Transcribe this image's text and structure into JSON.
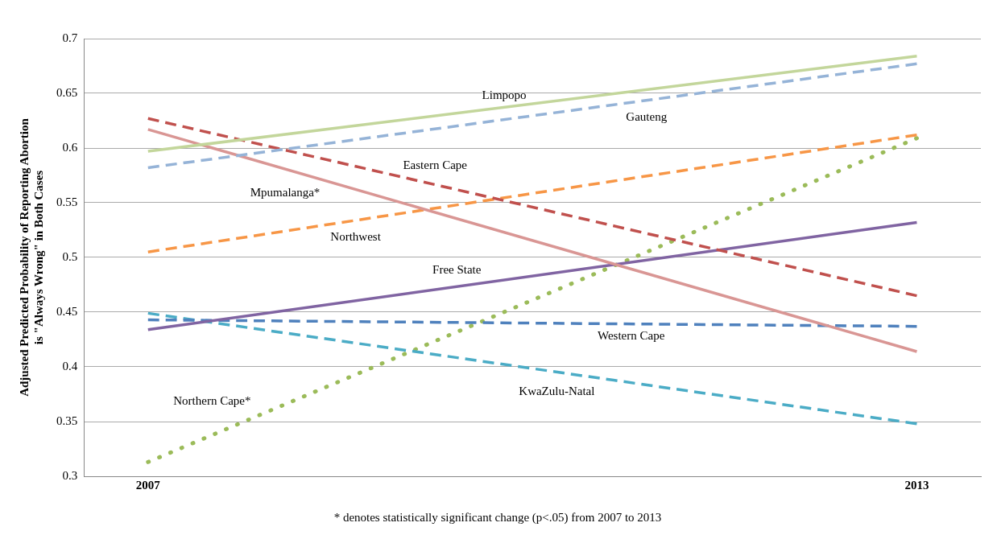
{
  "chart_data": {
    "type": "line",
    "ylabel": "Adjusted Predicted Probability of Reporting Abortion is \"Always Wrong\" in Both Cases",
    "x": [
      2007,
      2013
    ],
    "xlim": [
      2006.5,
      2013.5
    ],
    "xticks": [
      2007,
      2013
    ],
    "ylim": [
      0.3,
      0.7
    ],
    "yticks": [
      0.3,
      0.35,
      0.4,
      0.45,
      0.5,
      0.55,
      0.6,
      0.65,
      0.7
    ],
    "grid": "y",
    "legend": false,
    "marker": "none",
    "series": [
      {
        "name": "Limpopo",
        "color": "#c3d69b",
        "values": [
          0.597,
          0.684
        ],
        "line_style": "solid"
      },
      {
        "name": "Gauteng",
        "color": "#95b3d7",
        "values": [
          0.582,
          0.677
        ],
        "line_style": "dashed"
      },
      {
        "name": "Eastern Cape",
        "color": "#c0504d",
        "values": [
          0.627,
          0.465
        ],
        "line_style": "dashed"
      },
      {
        "name": "Mpumalanga*",
        "color": "#d99694",
        "values": [
          0.617,
          0.414
        ],
        "line_style": "solid"
      },
      {
        "name": "Northwest",
        "color": "#f79646",
        "values": [
          0.505,
          0.612
        ],
        "line_style": "dashed"
      },
      {
        "name": "Free State",
        "color": "#8064a2",
        "values": [
          0.434,
          0.532
        ],
        "line_style": "solid"
      },
      {
        "name": "Western Cape",
        "color": "#4f81bd",
        "values": [
          0.443,
          0.437
        ],
        "line_style": "dashed"
      },
      {
        "name": "KwaZulu-Natal",
        "color": "#4bacc6",
        "values": [
          0.449,
          0.348
        ],
        "line_style": "dashed"
      },
      {
        "name": "Northern Cape*",
        "color": "#9bbb59",
        "values": [
          0.313,
          0.609
        ],
        "line_style": "dotted"
      }
    ],
    "annotations": [
      "* denotes statistically significant change (p<.05) from 2007 to 2013"
    ]
  }
}
